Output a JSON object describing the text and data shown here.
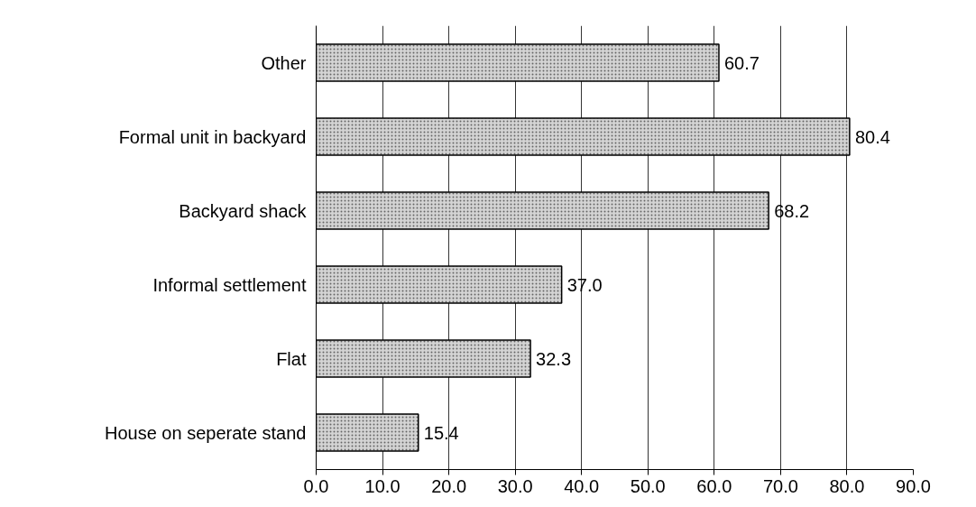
{
  "chart_data": {
    "type": "bar",
    "orientation": "horizontal",
    "categories": [
      "Other",
      "Formal unit in backyard",
      "Backyard shack",
      "Informal settlement",
      "Flat",
      "House on seperate stand"
    ],
    "values": [
      60.7,
      80.4,
      68.2,
      37.0,
      32.3,
      15.4
    ],
    "value_labels": [
      "60.7",
      "80.4",
      "68.2",
      "37.0",
      "32.3",
      "15.4"
    ],
    "color": "#d4d4d4",
    "xlim": [
      0,
      90
    ],
    "xticks": [
      {
        "value": 0,
        "label": "0.0"
      },
      {
        "value": 10,
        "label": "10.0"
      },
      {
        "value": 20,
        "label": "20.0"
      },
      {
        "value": 30,
        "label": "30.0"
      },
      {
        "value": 40,
        "label": "40.0"
      },
      {
        "value": 50,
        "label": "50.0"
      },
      {
        "value": 60,
        "label": "60.0"
      },
      {
        "value": 70,
        "label": "70.0"
      },
      {
        "value": 80,
        "label": "80.0"
      },
      {
        "value": 90,
        "label": "90.0"
      }
    ],
    "grid": "x"
  }
}
